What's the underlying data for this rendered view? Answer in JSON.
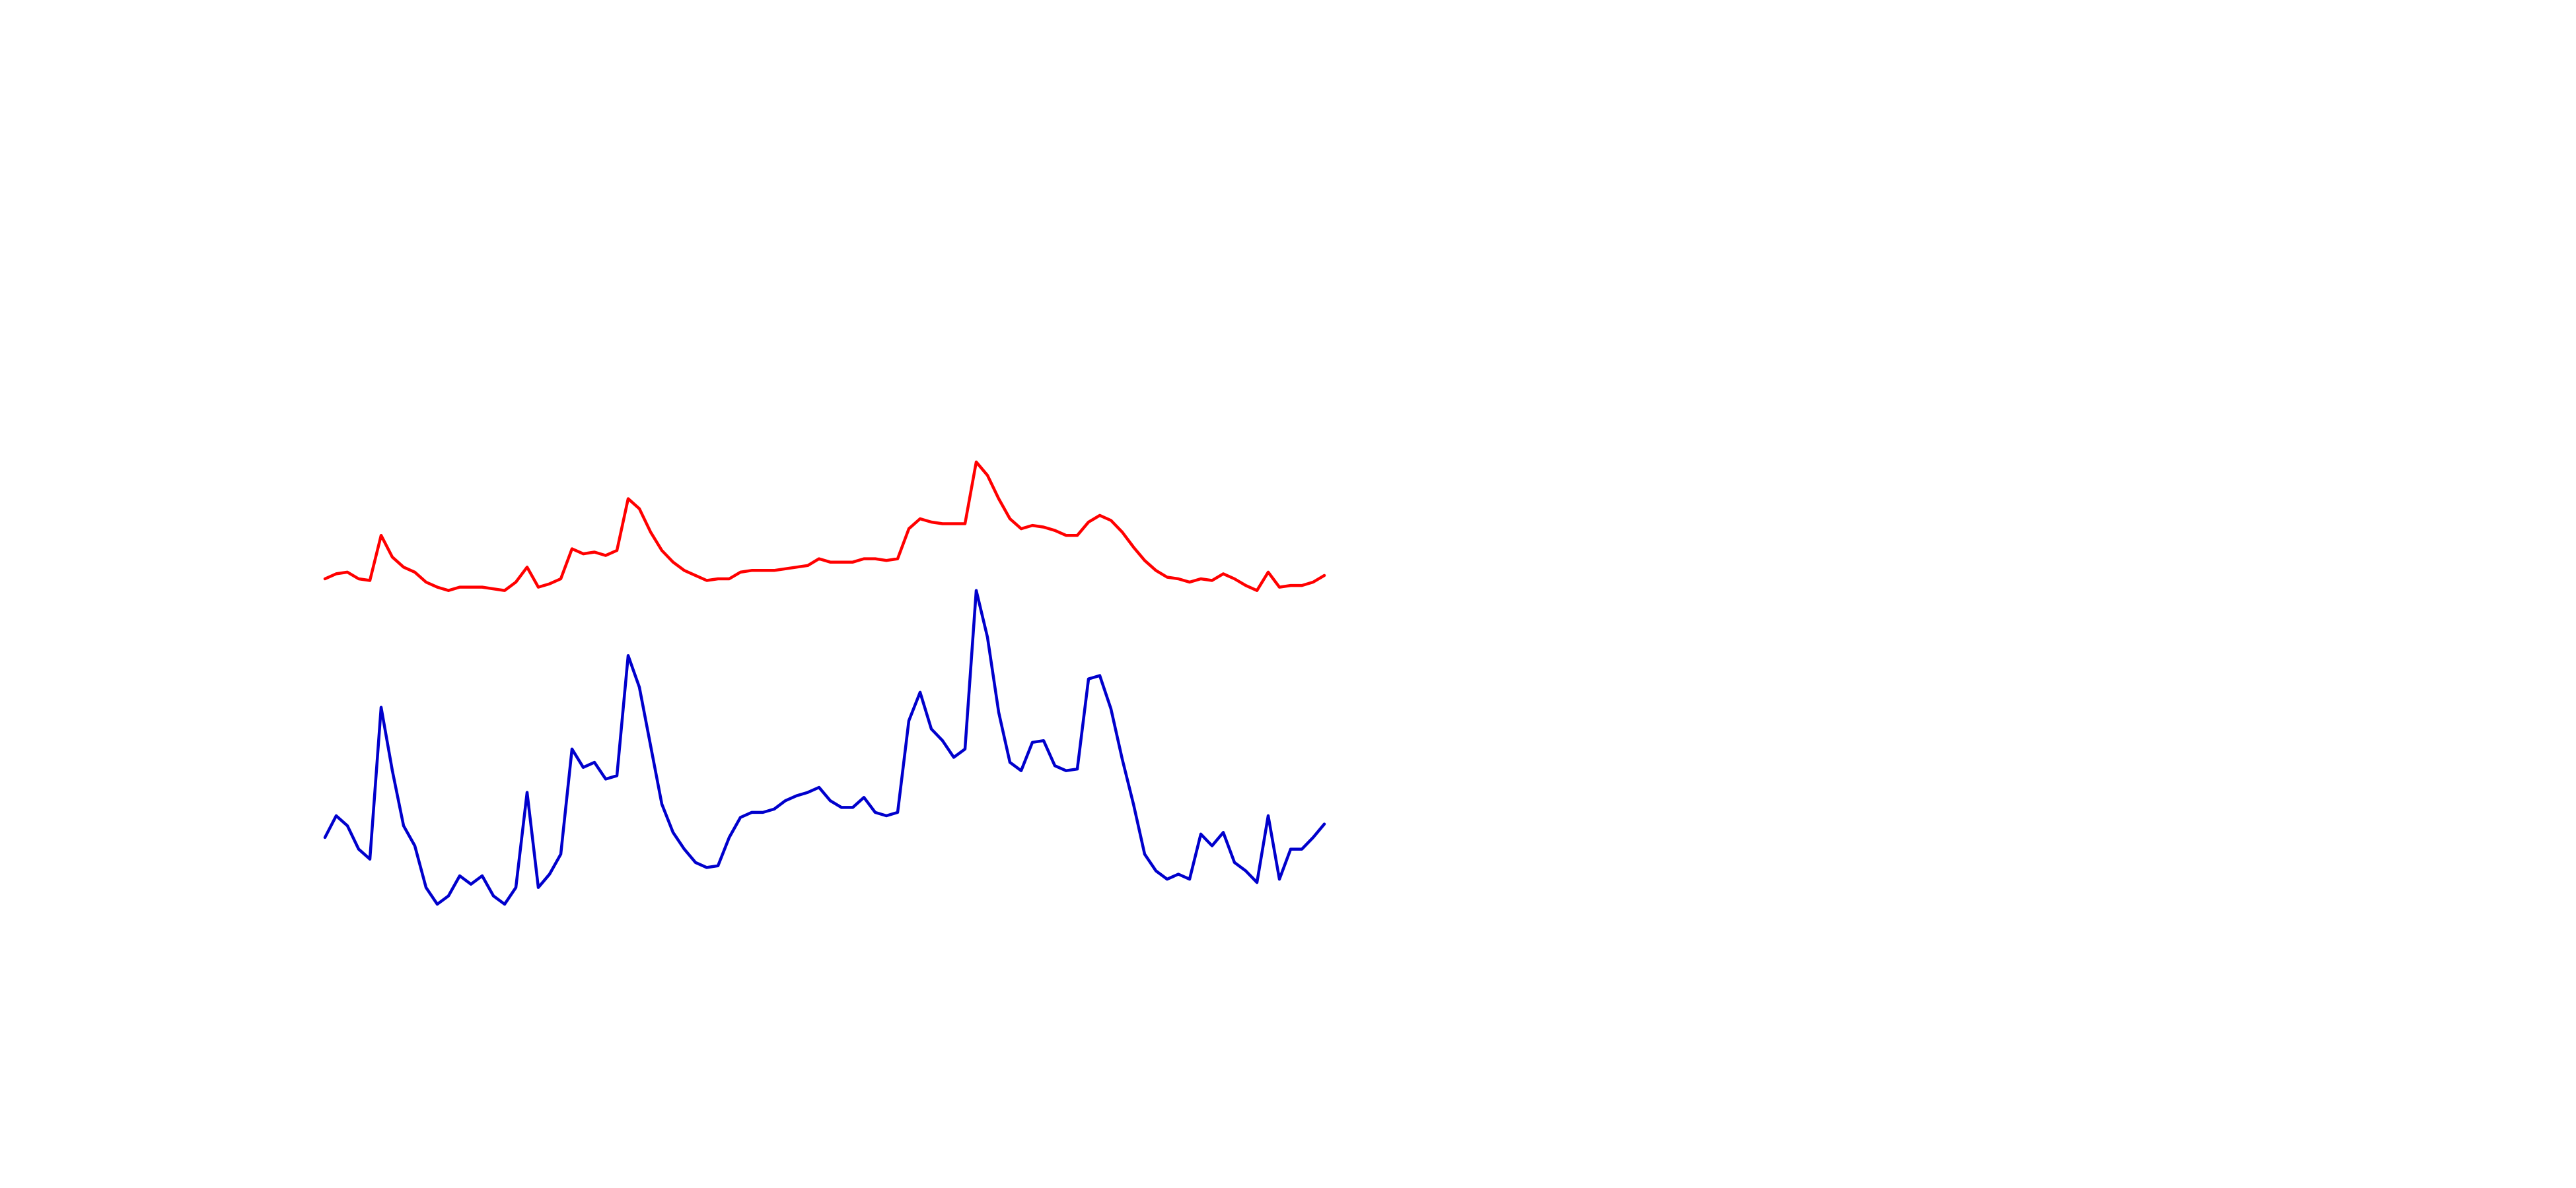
{
  "chart_data": {
    "type": "line",
    "series": [
      {
        "color": "#ff0000",
        "values": [
          370,
          373,
          374,
          370,
          369,
          396,
          383,
          377,
          374,
          368,
          365,
          363,
          365,
          365,
          365,
          364,
          363,
          368,
          377,
          365,
          367,
          370,
          388,
          385,
          386,
          384,
          387,
          418,
          412,
          398,
          387,
          380,
          375,
          372,
          369,
          370,
          370,
          374,
          375,
          375,
          375,
          376,
          377,
          378,
          382,
          380,
          380,
          380,
          382,
          382,
          381,
          382,
          400,
          406,
          404,
          403,
          403,
          403,
          440,
          432,
          418,
          406,
          400,
          402,
          401,
          399,
          396,
          396,
          404,
          408,
          405,
          398,
          389,
          381,
          375,
          371,
          370,
          368,
          370,
          369,
          373,
          370,
          366,
          363,
          374,
          365,
          366,
          366,
          368,
          372
        ]
      },
      {
        "color": "#0000cc",
        "values": [
          215,
          228,
          222,
          208,
          202,
          293,
          255,
          222,
          210,
          185,
          175,
          180,
          192,
          187,
          192,
          180,
          175,
          185,
          242,
          185,
          193,
          205,
          268,
          257,
          260,
          250,
          252,
          324,
          305,
          270,
          235,
          218,
          208,
          200,
          197,
          198,
          215,
          227,
          230,
          230,
          232,
          237,
          240,
          242,
          245,
          237,
          233,
          233,
          239,
          230,
          228,
          230,
          285,
          302,
          280,
          273,
          263,
          268,
          363,
          335,
          290,
          260,
          255,
          272,
          273,
          258,
          255,
          256,
          310,
          312,
          292,
          262,
          235,
          205,
          195,
          190,
          193,
          190,
          217,
          210,
          218,
          200,
          195,
          188,
          228,
          190,
          208,
          208,
          215,
          223
        ]
      }
    ]
  }
}
